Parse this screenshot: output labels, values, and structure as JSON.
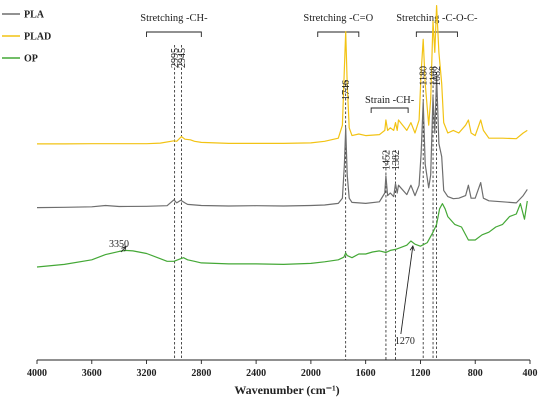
{
  "chart_data": {
    "type": "line",
    "title": "",
    "xlabel": "Wavenumber (cm⁻¹)",
    "ylabel": "",
    "xlim": [
      4000,
      400
    ],
    "x_reversed": true,
    "x_ticks": [
      4000,
      3600,
      3200,
      2800,
      2400,
      2000,
      1600,
      1200,
      800,
      400
    ],
    "x_tick_labels": [
      "4000",
      "3600",
      "3200",
      "2800",
      "2400",
      "2000",
      "1600",
      "1200",
      "800",
      "400"
    ],
    "grid": false,
    "legend_position": "top-left",
    "series": [
      {
        "name": "PLA",
        "color": "#6e6e6e",
        "points": [
          [
            4000,
            -0.3
          ],
          [
            3800,
            -0.25
          ],
          [
            3600,
            -0.15
          ],
          [
            3500,
            0.1
          ],
          [
            3400,
            -0.1
          ],
          [
            3200,
            -0.05
          ],
          [
            3050,
            0.05
          ],
          [
            3000,
            1.2
          ],
          [
            2980,
            0.6
          ],
          [
            2950,
            1.1
          ],
          [
            2920,
            0.6
          ],
          [
            2900,
            0.3
          ],
          [
            2800,
            0.1
          ],
          [
            2600,
            0.0
          ],
          [
            2400,
            0.05
          ],
          [
            2200,
            0.0
          ],
          [
            2000,
            0.1
          ],
          [
            1900,
            0.2
          ],
          [
            1800,
            0.5
          ],
          [
            1770,
            1.5
          ],
          [
            1755,
            8.0
          ],
          [
            1746,
            15.0
          ],
          [
            1735,
            6.0
          ],
          [
            1720,
            1.5
          ],
          [
            1700,
            0.7
          ],
          [
            1600,
            0.5
          ],
          [
            1500,
            0.8
          ],
          [
            1460,
            2.5
          ],
          [
            1452,
            5.8
          ],
          [
            1440,
            2.0
          ],
          [
            1420,
            2.5
          ],
          [
            1395,
            1.8
          ],
          [
            1382,
            4.3
          ],
          [
            1370,
            2.5
          ],
          [
            1360,
            4.0
          ],
          [
            1300,
            2.2
          ],
          [
            1270,
            4.0
          ],
          [
            1240,
            2.0
          ],
          [
            1210,
            4.0
          ],
          [
            1195,
            10.0
          ],
          [
            1180,
            20.0
          ],
          [
            1165,
            8.0
          ],
          [
            1140,
            3.5
          ],
          [
            1125,
            6.0
          ],
          [
            1108,
            21.0
          ],
          [
            1095,
            14.0
          ],
          [
            1082,
            25.0
          ],
          [
            1065,
            12.0
          ],
          [
            1045,
            9.5
          ],
          [
            1030,
            3.0
          ],
          [
            1000,
            1.8
          ],
          [
            960,
            1.4
          ],
          [
            920,
            1.5
          ],
          [
            870,
            2.0
          ],
          [
            850,
            4.0
          ],
          [
            830,
            1.5
          ],
          [
            800,
            1.5
          ],
          [
            760,
            4.5
          ],
          [
            740,
            1.5
          ],
          [
            700,
            1.0
          ],
          [
            600,
            0.8
          ],
          [
            500,
            0.6
          ],
          [
            450,
            2.0
          ],
          [
            420,
            3.2
          ]
        ]
      },
      {
        "name": "PLAD",
        "color": "#f2c314",
        "points": [
          [
            4000,
            0.4
          ],
          [
            3800,
            0.4
          ],
          [
            3600,
            0.45
          ],
          [
            3400,
            0.45
          ],
          [
            3200,
            0.45
          ],
          [
            3100,
            0.55
          ],
          [
            3000,
            1.0
          ],
          [
            2980,
            0.9
          ],
          [
            2945,
            1.8
          ],
          [
            2920,
            1.3
          ],
          [
            2880,
            1.2
          ],
          [
            2850,
            0.9
          ],
          [
            2800,
            0.7
          ],
          [
            2600,
            0.5
          ],
          [
            2400,
            0.5
          ],
          [
            2200,
            0.5
          ],
          [
            2000,
            0.6
          ],
          [
            1900,
            0.9
          ],
          [
            1800,
            1.5
          ],
          [
            1770,
            4.0
          ],
          [
            1755,
            15.0
          ],
          [
            1746,
            22.0
          ],
          [
            1735,
            12.0
          ],
          [
            1720,
            3.5
          ],
          [
            1700,
            2.0
          ],
          [
            1650,
            2.3
          ],
          [
            1600,
            2.0
          ],
          [
            1500,
            2.2
          ],
          [
            1460,
            3.0
          ],
          [
            1452,
            5.0
          ],
          [
            1440,
            3.0
          ],
          [
            1420,
            3.5
          ],
          [
            1395,
            3.0
          ],
          [
            1382,
            4.5
          ],
          [
            1370,
            3.0
          ],
          [
            1360,
            5.0
          ],
          [
            1300,
            3.0
          ],
          [
            1270,
            4.5
          ],
          [
            1240,
            2.5
          ],
          [
            1210,
            5.0
          ],
          [
            1195,
            14.0
          ],
          [
            1180,
            20.5
          ],
          [
            1165,
            12.0
          ],
          [
            1140,
            4.0
          ],
          [
            1125,
            9.0
          ],
          [
            1108,
            24.0
          ],
          [
            1095,
            18.0
          ],
          [
            1082,
            27.0
          ],
          [
            1065,
            18.0
          ],
          [
            1045,
            12.0
          ],
          [
            1030,
            4.5
          ],
          [
            1000,
            2.5
          ],
          [
            960,
            3.0
          ],
          [
            920,
            2.5
          ],
          [
            870,
            4.0
          ],
          [
            850,
            5.0
          ],
          [
            830,
            2.5
          ],
          [
            800,
            2.0
          ],
          [
            760,
            5.0
          ],
          [
            740,
            3.0
          ],
          [
            700,
            1.5
          ],
          [
            600,
            1.5
          ],
          [
            500,
            1.4
          ],
          [
            450,
            2.5
          ],
          [
            420,
            3.0
          ]
        ]
      },
      {
        "name": "OP",
        "color": "#44a836",
        "points": [
          [
            4000,
            -0.2
          ],
          [
            3800,
            0.3
          ],
          [
            3600,
            1.2
          ],
          [
            3500,
            2.2
          ],
          [
            3400,
            2.8
          ],
          [
            3350,
            3.0
          ],
          [
            3300,
            2.9
          ],
          [
            3200,
            2.4
          ],
          [
            3100,
            1.4
          ],
          [
            3050,
            0.9
          ],
          [
            3000,
            0.9
          ],
          [
            2960,
            1.3
          ],
          [
            2930,
            1.6
          ],
          [
            2900,
            1.2
          ],
          [
            2850,
            0.9
          ],
          [
            2800,
            0.6
          ],
          [
            2600,
            0.4
          ],
          [
            2400,
            0.4
          ],
          [
            2200,
            0.3
          ],
          [
            2000,
            0.5
          ],
          [
            1900,
            0.8
          ],
          [
            1800,
            1.2
          ],
          [
            1760,
            1.7
          ],
          [
            1746,
            2.5
          ],
          [
            1735,
            2.0
          ],
          [
            1700,
            1.6
          ],
          [
            1650,
            2.3
          ],
          [
            1600,
            2.3
          ],
          [
            1550,
            2.7
          ],
          [
            1500,
            2.9
          ],
          [
            1452,
            2.6
          ],
          [
            1420,
            3.0
          ],
          [
            1382,
            3.2
          ],
          [
            1350,
            3.5
          ],
          [
            1300,
            4.0
          ],
          [
            1270,
            4.8
          ],
          [
            1240,
            4.2
          ],
          [
            1200,
            3.8
          ],
          [
            1150,
            4.5
          ],
          [
            1108,
            6.5
          ],
          [
            1082,
            8.0
          ],
          [
            1060,
            11.0
          ],
          [
            1040,
            12.0
          ],
          [
            1020,
            11.0
          ],
          [
            1000,
            9.5
          ],
          [
            950,
            8.0
          ],
          [
            900,
            7.5
          ],
          [
            850,
            5.0
          ],
          [
            800,
            5.0
          ],
          [
            750,
            6.0
          ],
          [
            700,
            6.5
          ],
          [
            650,
            7.5
          ],
          [
            600,
            8.0
          ],
          [
            550,
            9.5
          ],
          [
            500,
            10.0
          ],
          [
            470,
            12.0
          ],
          [
            440,
            9.0
          ],
          [
            420,
            12.5
          ]
        ]
      }
    ],
    "series_offsets": {
      "PLA": 140,
      "PLAD": 80,
      "OP": 200
    },
    "reference_lines": [
      2995,
      2945,
      1746,
      1452,
      1382,
      1180,
      1108,
      1082
    ],
    "peak_labels": [
      {
        "text": "2995",
        "x": 2995
      },
      {
        "text": "2945",
        "x": 2945
      },
      {
        "text": "1746",
        "x": 1746
      },
      {
        "text": "1452",
        "x": 1452
      },
      {
        "text": "1382",
        "x": 1382
      },
      {
        "text": "1180",
        "x": 1180
      },
      {
        "text": "1108",
        "x": 1108
      },
      {
        "text": "1082",
        "x": 1082
      }
    ],
    "group_labels": [
      {
        "text": "Stretching -CH-",
        "x_start": 3200,
        "x_end": 2800
      },
      {
        "text": "Stretching -C=O",
        "x_start": 1950,
        "x_end": 1650
      },
      {
        "text": "Strain -CH-",
        "x_start": 1560,
        "x_end": 1290
      },
      {
        "text": "Stretching -C-O-C-",
        "x_start": 1230,
        "x_end": 930
      }
    ],
    "annotations": [
      {
        "text": "3350",
        "x": 3350,
        "series": "OP"
      },
      {
        "text": "1270",
        "x": 1270,
        "series": "OP"
      }
    ]
  }
}
